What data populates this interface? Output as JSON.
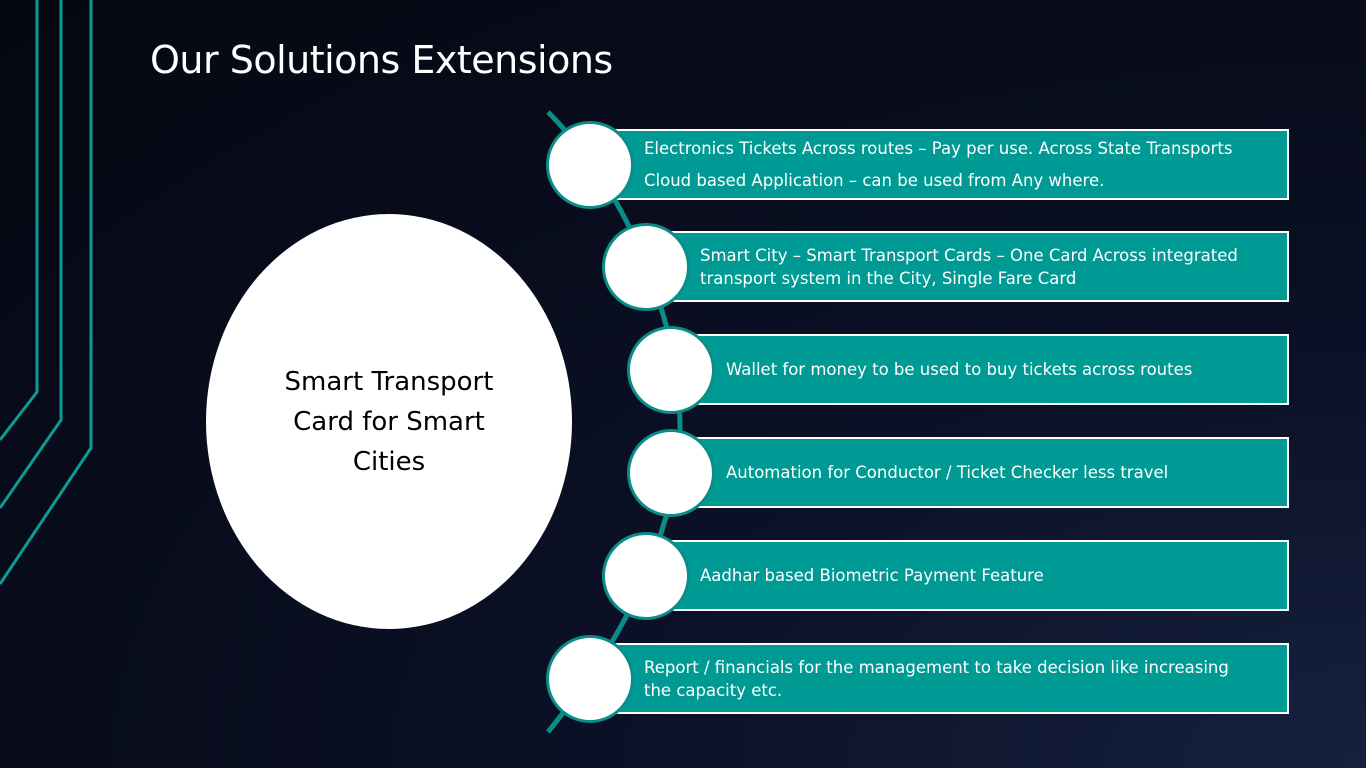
{
  "slide": {
    "title": "Our Solutions Extensions",
    "center_label": "Smart Transport Card for Smart Cities"
  },
  "items": [
    {
      "line1": "Electronics Tickets Across routes – Pay per use. Across State Transports",
      "line2": "Cloud based Application – can be used from Any where."
    },
    {
      "line1": "Smart City – Smart Transport Cards – One Card Across integrated",
      "line2": "transport system in the City, Single Fare Card"
    },
    {
      "line1": "Wallet for money to be used to buy tickets across routes"
    },
    {
      "line1": "Automation for Conductor / Ticket Checker less travel"
    },
    {
      "line1": "Aadhar based Biometric Payment Feature"
    },
    {
      "line1": "Report / financials for the management to take decision like increasing",
      "line2": "the capacity etc."
    }
  ],
  "colors": {
    "accent": "#009a94",
    "connector": "#0a8d88",
    "background": "#0b1026"
  }
}
